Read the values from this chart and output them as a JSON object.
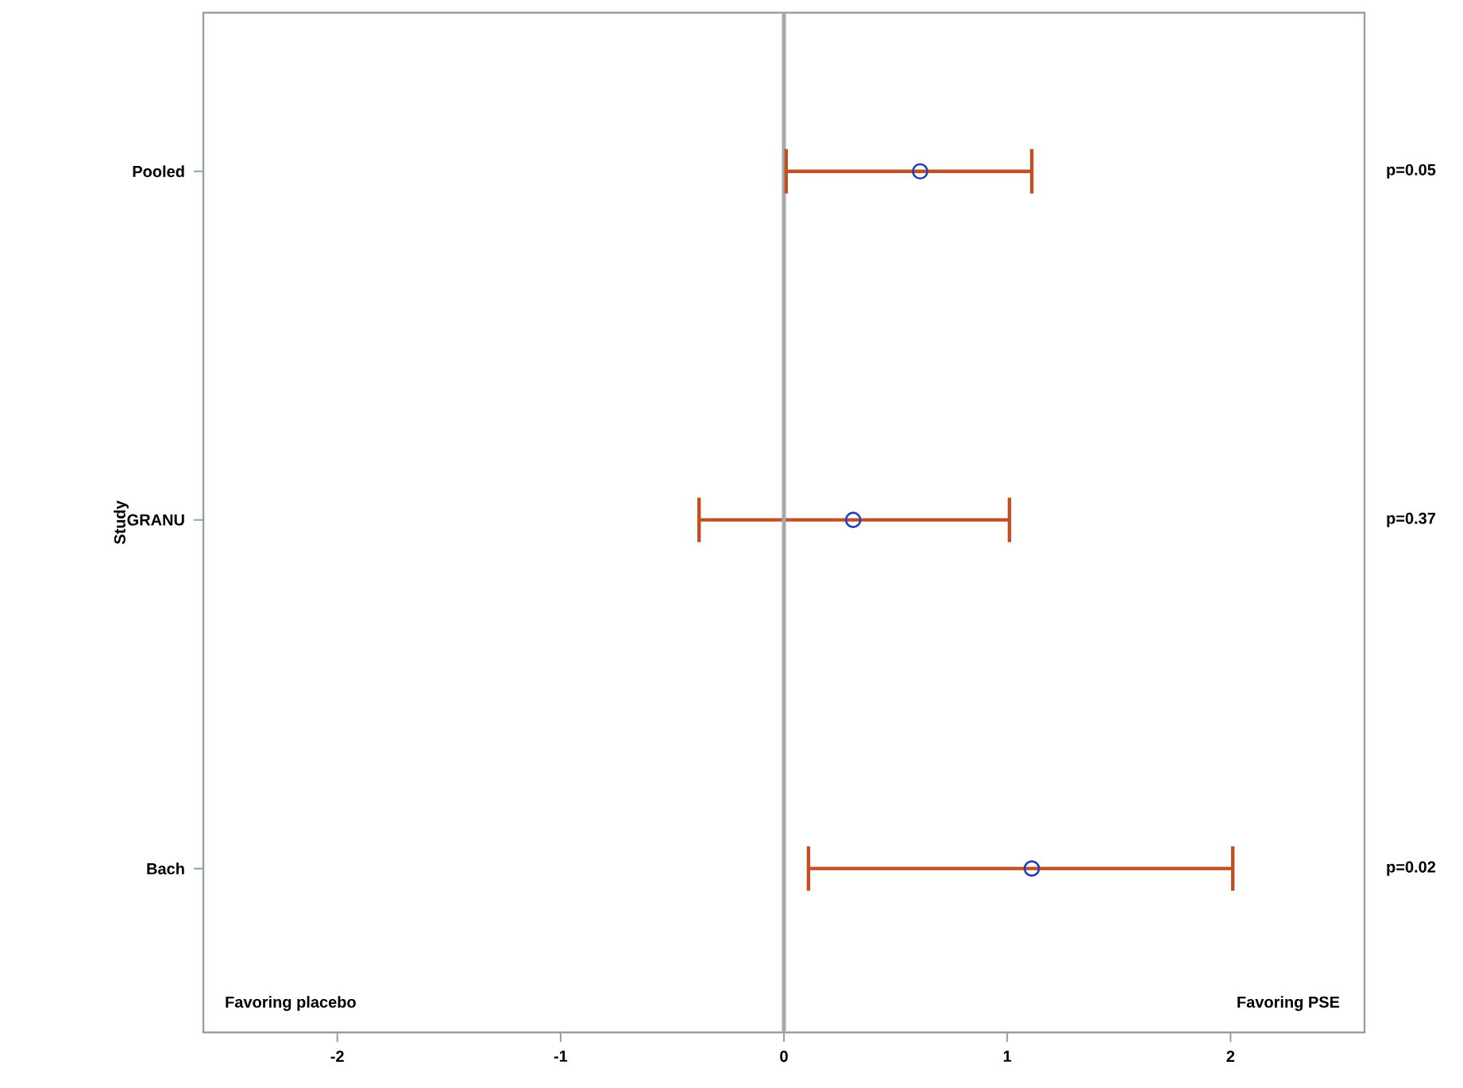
{
  "chart_data": {
    "type": "scatter",
    "orientation": "horizontal",
    "ylabel": "Study",
    "categories": [
      "Pooled",
      "GRANU",
      "Bach"
    ],
    "values": [
      0.61,
      0.31,
      1.11
    ],
    "errors": [
      [
        0.01,
        1.11
      ],
      [
        -0.38,
        1.01
      ],
      [
        0.11,
        2.01
      ]
    ],
    "color": "#1f3fbf",
    "marker": "circle",
    "xlim": [
      -2.6,
      2.6
    ],
    "xticks": [
      -2,
      -1,
      0,
      1,
      2
    ],
    "ref_lines": [
      {
        "axis": "x",
        "value": 0,
        "color": "#a8a8a8"
      }
    ],
    "annotations": [
      "p=0.05",
      "p=0.37",
      "p=0.02",
      "Favoring placebo",
      "Favoring PSE"
    ]
  }
}
